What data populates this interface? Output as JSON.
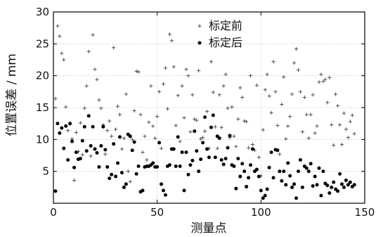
{
  "chart_data": {
    "type": "scatter",
    "title": "",
    "xlabel": "测量点",
    "ylabel": "位置误差 / mm",
    "xlim": [
      0,
      150
    ],
    "ylim": [
      0,
      30
    ],
    "xticks": [
      0,
      50,
      100,
      150
    ],
    "yticks": [
      5,
      10,
      15,
      20,
      25,
      30
    ],
    "grid": true,
    "legend_position": "top-center",
    "series": [
      {
        "name": "标定前",
        "marker": "plus",
        "color": "#444444",
        "points": [
          [
            1,
            16.4
          ],
          [
            2,
            27.8
          ],
          [
            3,
            26.2
          ],
          [
            4,
            23.5
          ],
          [
            5,
            22.5
          ],
          [
            6,
            15.1
          ],
          [
            7,
            11.4
          ],
          [
            8,
            12.4
          ],
          [
            9,
            10.1
          ],
          [
            10,
            3.6
          ],
          [
            11,
            11.1
          ],
          [
            12,
            8.1
          ],
          [
            13,
            12.6
          ],
          [
            14,
            7.6
          ],
          [
            15,
            14.9
          ],
          [
            16,
            18.4
          ],
          [
            17,
            23.8
          ],
          [
            18,
            7.4
          ],
          [
            19,
            26.4
          ],
          [
            20,
            21.0
          ],
          [
            21,
            19.4
          ],
          [
            22,
            16.2
          ],
          [
            23,
            14.9
          ],
          [
            24,
            12.3
          ],
          [
            25,
            7.7
          ],
          [
            26,
            11.4
          ],
          [
            27,
            12.9
          ],
          [
            28,
            10.5
          ],
          [
            29,
            24.4
          ],
          [
            30,
            11.6
          ],
          [
            31,
            15.2
          ],
          [
            32,
            13.9
          ],
          [
            33,
            8.5
          ],
          [
            34,
            10.2
          ],
          [
            35,
            17.1
          ],
          [
            36,
            5.0
          ],
          [
            37,
            3.4
          ],
          [
            38,
            10.0
          ],
          [
            39,
            14.5
          ],
          [
            40,
            20.7
          ],
          [
            41,
            20.6
          ],
          [
            42,
            13.9
          ],
          [
            43,
            8.0
          ],
          [
            44,
            10.5
          ],
          [
            45,
            6.8
          ],
          [
            46,
            12.7
          ],
          [
            47,
            18.4
          ],
          [
            48,
            12.1
          ],
          [
            49,
            10.2
          ],
          [
            50,
            13.6
          ],
          [
            51,
            17.5
          ],
          [
            52,
            8.6
          ],
          [
            53,
            18.7
          ],
          [
            54,
            21.2
          ],
          [
            55,
            14.8
          ],
          [
            56,
            26.5
          ],
          [
            57,
            25.5
          ],
          [
            58,
            21.4
          ],
          [
            59,
            12.2
          ],
          [
            60,
            16.9
          ],
          [
            61,
            9.7
          ],
          [
            62,
            18.4
          ],
          [
            63,
            13.4
          ],
          [
            64,
            21.0
          ],
          [
            65,
            20.0
          ],
          [
            66,
            11.2
          ],
          [
            67,
            17.0
          ],
          [
            68,
            13.2
          ],
          [
            69,
            13.0
          ],
          [
            70,
            20.8
          ],
          [
            71,
            10.1
          ],
          [
            72,
            10.3
          ],
          [
            73,
            11.3
          ],
          [
            74,
            14.4
          ],
          [
            75,
            8.6
          ],
          [
            76,
            22.2
          ],
          [
            77,
            17.4
          ],
          [
            78,
            12.0
          ],
          [
            79,
            8.6
          ],
          [
            80,
            17.0
          ],
          [
            81,
            11.9
          ],
          [
            82,
            18.4
          ],
          [
            83,
            20.2
          ],
          [
            84,
            14.9
          ],
          [
            85,
            10.3
          ],
          [
            86,
            15.1
          ],
          [
            87,
            10.5
          ],
          [
            88,
            8.9
          ],
          [
            89,
            13.2
          ],
          [
            90,
            18.1
          ],
          [
            91,
            16.6
          ],
          [
            92,
            12.9
          ],
          [
            93,
            12.8
          ],
          [
            94,
            8.7
          ],
          [
            95,
            20.0
          ],
          [
            96,
            9.2
          ],
          [
            97,
            8.3
          ],
          [
            98,
            18.5
          ],
          [
            99,
            7.2
          ],
          [
            100,
            4.3
          ],
          [
            101,
            11.5
          ],
          [
            102,
            17.8
          ],
          [
            103,
            20.2
          ],
          [
            104,
            16.8
          ],
          [
            105,
            14.2
          ],
          [
            106,
            22.2
          ],
          [
            107,
            17.5
          ],
          [
            108,
            12.2
          ],
          [
            109,
            7.7
          ],
          [
            110,
            15.5
          ],
          [
            111,
            19.8
          ],
          [
            112,
            10.1
          ],
          [
            113,
            12.1
          ],
          [
            114,
            13.6
          ],
          [
            115,
            17.1
          ],
          [
            116,
            22.0
          ],
          [
            117,
            24.2
          ],
          [
            118,
            20.9
          ],
          [
            119,
            17.5
          ],
          [
            120,
            11.2
          ],
          [
            121,
            16.6
          ],
          [
            122,
            13.9
          ],
          [
            123,
            10.2
          ],
          [
            124,
            13.9
          ],
          [
            125,
            17.0
          ],
          [
            126,
            11.0
          ],
          [
            127,
            12.1
          ],
          [
            128,
            19.0
          ],
          [
            129,
            20.2
          ],
          [
            130,
            19.1
          ],
          [
            131,
            19.4
          ],
          [
            132,
            15.8
          ],
          [
            133,
            19.7
          ],
          [
            134,
            12.3
          ],
          [
            135,
            9.1
          ],
          [
            136,
            17.1
          ],
          [
            137,
            15.3
          ],
          [
            138,
            12.3
          ],
          [
            139,
            9.2
          ],
          [
            140,
            14.1
          ],
          [
            141,
            11.6
          ],
          [
            142,
            10.3
          ],
          [
            143,
            12.8
          ],
          [
            144,
            13.8
          ],
          [
            145,
            10.9
          ]
        ]
      },
      {
        "name": "标定后",
        "marker": "dot",
        "color": "#000000",
        "points": [
          [
            1,
            1.9
          ],
          [
            2,
            12.5
          ],
          [
            3,
            11.0
          ],
          [
            4,
            11.8
          ],
          [
            5,
            8.6
          ],
          [
            6,
            12.1
          ],
          [
            7,
            6.8
          ],
          [
            8,
            12.5
          ],
          [
            9,
            9.7
          ],
          [
            10,
            5.6
          ],
          [
            11,
            8.0
          ],
          [
            12,
            6.9
          ],
          [
            13,
            7.0
          ],
          [
            14,
            9.8
          ],
          [
            15,
            12.0
          ],
          [
            16,
            8.2
          ],
          [
            17,
            13.7
          ],
          [
            18,
            9.0
          ],
          [
            19,
            12.0
          ],
          [
            20,
            8.5
          ],
          [
            21,
            7.9
          ],
          [
            22,
            5.7
          ],
          [
            23,
            9.0
          ],
          [
            24,
            12.0
          ],
          [
            25,
            8.4
          ],
          [
            26,
            5.7
          ],
          [
            27,
            3.9
          ],
          [
            28,
            4.5
          ],
          [
            29,
            9.3
          ],
          [
            30,
            4.2
          ],
          [
            31,
            6.3
          ],
          [
            32,
            10.4
          ],
          [
            33,
            4.8
          ],
          [
            34,
            2.5
          ],
          [
            35,
            3.0
          ],
          [
            36,
            10.8
          ],
          [
            37,
            10.5
          ],
          [
            38,
            8.3
          ],
          [
            39,
            9.6
          ],
          [
            40,
            4.6
          ],
          [
            41,
            5.8
          ],
          [
            42,
            1.8
          ],
          [
            43,
            2.0
          ],
          [
            44,
            5.7
          ],
          [
            45,
            5.8
          ],
          [
            46,
            5.8
          ],
          [
            47,
            6.0
          ],
          [
            48,
            6.3
          ],
          [
            49,
            5.7
          ],
          [
            50,
            5.7
          ],
          [
            51,
            9.5
          ],
          [
            52,
            3.0
          ],
          [
            53,
            2.0
          ],
          [
            54,
            1.3
          ],
          [
            55,
            5.8
          ],
          [
            56,
            6.0
          ],
          [
            57,
            8.5
          ],
          [
            58,
            8.5
          ],
          [
            59,
            5.8
          ],
          [
            60,
            10.4
          ],
          [
            61,
            5.8
          ],
          [
            62,
            8.0
          ],
          [
            63,
            2.0
          ],
          [
            64,
            8.0
          ],
          [
            65,
            4.5
          ],
          [
            66,
            6.0
          ],
          [
            67,
            6.7
          ],
          [
            68,
            11.3
          ],
          [
            69,
            8.2
          ],
          [
            70,
            5.0
          ],
          [
            71,
            6.9
          ],
          [
            72,
            9.5
          ],
          [
            73,
            13.5
          ],
          [
            74,
            8.5
          ],
          [
            75,
            7.2
          ],
          [
            76,
            11.9
          ],
          [
            77,
            13.8
          ],
          [
            78,
            7.2
          ],
          [
            79,
            10.5
          ],
          [
            80,
            10.2
          ],
          [
            81,
            6.8
          ],
          [
            82,
            6.1
          ],
          [
            83,
            7.0
          ],
          [
            84,
            8.7
          ],
          [
            85,
            10.6
          ],
          [
            86,
            6.0
          ],
          [
            87,
            5.8
          ],
          [
            88,
            2.3
          ],
          [
            89,
            7.0
          ],
          [
            90,
            4.2
          ],
          [
            91,
            6.2
          ],
          [
            92,
            5.0
          ],
          [
            93,
            2.6
          ],
          [
            94,
            4.0
          ],
          [
            95,
            6.0
          ],
          [
            96,
            8.5
          ],
          [
            97,
            5.0
          ],
          [
            98,
            5.3
          ],
          [
            99,
            4.2
          ],
          [
            100,
            2.0
          ],
          [
            101,
            0.8
          ],
          [
            102,
            1.2
          ],
          [
            103,
            2.2
          ],
          [
            104,
            5.6
          ],
          [
            105,
            8.0
          ],
          [
            106,
            4.0
          ],
          [
            107,
            8.4
          ],
          [
            108,
            8.3
          ],
          [
            109,
            5.0
          ],
          [
            110,
            3.5
          ],
          [
            111,
            5.0
          ],
          [
            112,
            2.9
          ],
          [
            113,
            6.3
          ],
          [
            114,
            4.3
          ],
          [
            115,
            2.5
          ],
          [
            116,
            3.0
          ],
          [
            117,
            0.8
          ],
          [
            118,
            5.0
          ],
          [
            119,
            6.8
          ],
          [
            120,
            2.5
          ],
          [
            121,
            5.8
          ],
          [
            122,
            5.5
          ],
          [
            123,
            5.0
          ],
          [
            124,
            6.2
          ],
          [
            125,
            2.7
          ],
          [
            126,
            4.2
          ],
          [
            127,
            2.9
          ],
          [
            128,
            5.5
          ],
          [
            129,
            1.2
          ],
          [
            130,
            5.0
          ],
          [
            131,
            3.1
          ],
          [
            132,
            2.8
          ],
          [
            133,
            1.6
          ],
          [
            134,
            2.5
          ],
          [
            135,
            3.3
          ],
          [
            136,
            2.2
          ],
          [
            137,
            1.9
          ],
          [
            138,
            4.6
          ],
          [
            139,
            3.0
          ],
          [
            140,
            2.5
          ],
          [
            141,
            3.6
          ],
          [
            142,
            2.9
          ],
          [
            143,
            3.3
          ],
          [
            144,
            2.6
          ],
          [
            145,
            2.9
          ]
        ]
      }
    ]
  }
}
